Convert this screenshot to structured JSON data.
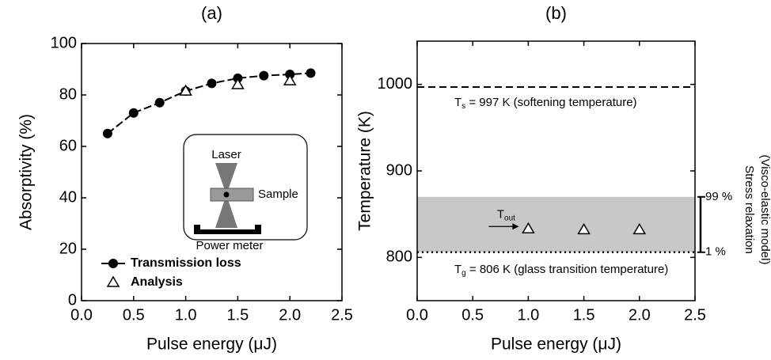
{
  "chart_data": [
    {
      "type": "line",
      "title": "(a)",
      "x_label": "Pulse energy (μJ)",
      "y_label": "Absorptivity (%)",
      "xlim": [
        0,
        2.5
      ],
      "xticks": [
        {
          "value": 0,
          "label": "0.0"
        },
        {
          "value": 0.5,
          "label": "0.5"
        },
        {
          "value": 1,
          "label": "1.0"
        },
        {
          "value": 1.5,
          "label": "1.5"
        },
        {
          "value": 2,
          "label": "2.0"
        },
        {
          "value": 2.5,
          "label": "2.5"
        }
      ],
      "ylim": [
        0,
        100
      ],
      "yticks": [
        0,
        20,
        40,
        60,
        80,
        100
      ],
      "series": [
        {
          "name": "Transmission loss",
          "color": "#000000",
          "marker": "circle",
          "line": true,
          "x": [
            0.25,
            0.5,
            0.75,
            1.0,
            1.25,
            1.5,
            1.75,
            2.0,
            2.2
          ],
          "values": [
            65,
            73,
            77,
            81.5,
            84.5,
            86.5,
            87.5,
            88,
            88.5
          ]
        },
        {
          "name": "Analysis",
          "color": "#000000",
          "marker": "triangle",
          "line": false,
          "x": [
            1.0,
            1.5,
            2.0
          ],
          "values": [
            81.5,
            84,
            85.5
          ]
        }
      ],
      "legend": "lower left",
      "inset": {
        "laser": "Laser",
        "sample": "Sample",
        "meter": "Power meter"
      }
    },
    {
      "type": "scatter",
      "title": "(b)",
      "x_label": "Pulse energy (μJ)",
      "y_label": "Temperature (K)",
      "xlim": [
        0,
        2.5
      ],
      "xticks": [
        {
          "value": 0,
          "label": "0.0"
        },
        {
          "value": 0.5,
          "label": "0.5"
        },
        {
          "value": 1,
          "label": "1.0"
        },
        {
          "value": 1.5,
          "label": "1.5"
        },
        {
          "value": 2,
          "label": "2.0"
        },
        {
          "value": 2.5,
          "label": "2.5"
        }
      ],
      "ylim": [
        750,
        1050
      ],
      "yticks": [
        800,
        900,
        1000
      ],
      "series": [
        {
          "color": "#000000",
          "marker": "triangle",
          "line": false,
          "x": [
            1.0,
            1.5,
            2.0
          ],
          "values": [
            833,
            832,
            832
          ]
        }
      ],
      "point_label": {
        "main": "T",
        "sub": "out"
      },
      "reference_lines": [
        {
          "value": 997,
          "style": "dashed",
          "main": "T",
          "sub": "s",
          "rest": " = 997 K (softening temperature)"
        },
        {
          "value": 806,
          "style": "dotted",
          "main": "T",
          "sub": "g",
          "rest": " = 806 K (glass transition temperature)"
        }
      ],
      "band": {
        "range": [
          806,
          870
        ],
        "color": "#c8c8c8"
      },
      "bracket": {
        "range": [
          806,
          870
        ],
        "labels": [
          "1 %",
          "99 %"
        ]
      },
      "side_label": [
        "Stress relaxation",
        "(Visco-elastic model)"
      ]
    }
  ]
}
